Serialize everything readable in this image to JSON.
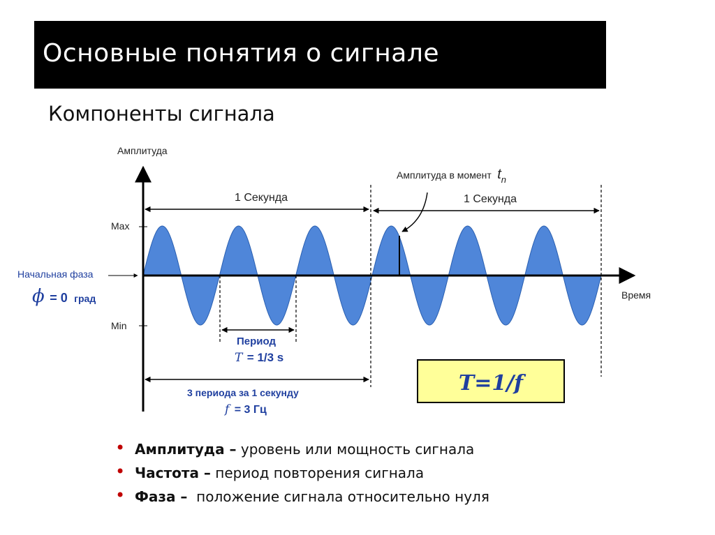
{
  "slide": {
    "title": "Основные понятия о сигнале",
    "subtitle": "Компоненты сигнала"
  },
  "diagram": {
    "y_axis_label": "Амплитуда",
    "x_axis_label": "Время",
    "max_label": "Max",
    "min_label": "Min",
    "initial_phase_label": "Начальная фаза",
    "phase_symbol": "ϕ",
    "phase_value": "= 0",
    "phase_unit": "град",
    "second_label_1": "1 Секунда",
    "second_label_2": "1 Секунда",
    "amplitude_at_moment_label": "Амплитуда в момент",
    "t_symbol": "t",
    "t_subscript": "n",
    "period_label": "Период",
    "period_symbol": "T",
    "period_value": "= 1/3 s",
    "three_periods_label": "3 периода за 1 секунду",
    "freq_symbol": "f",
    "freq_value": "= 3 Гц",
    "formula": "T=1/f",
    "wave": {
      "cycles_per_second": 3,
      "seconds_shown": 2,
      "initial_phase_deg": 0
    },
    "colors": {
      "wave_fill": "#4f86d9",
      "formula_box": "#ffff99",
      "blue_text": "#1f3f9f"
    }
  },
  "bullets": [
    {
      "term": "Амплитуда –",
      "text": " уровень или мощность сигнала"
    },
    {
      "term": "Частота –",
      "text": " период повторения сигнала"
    },
    {
      "term": "Фаза –",
      "text": "  положение сигнала относительно нуля"
    }
  ]
}
